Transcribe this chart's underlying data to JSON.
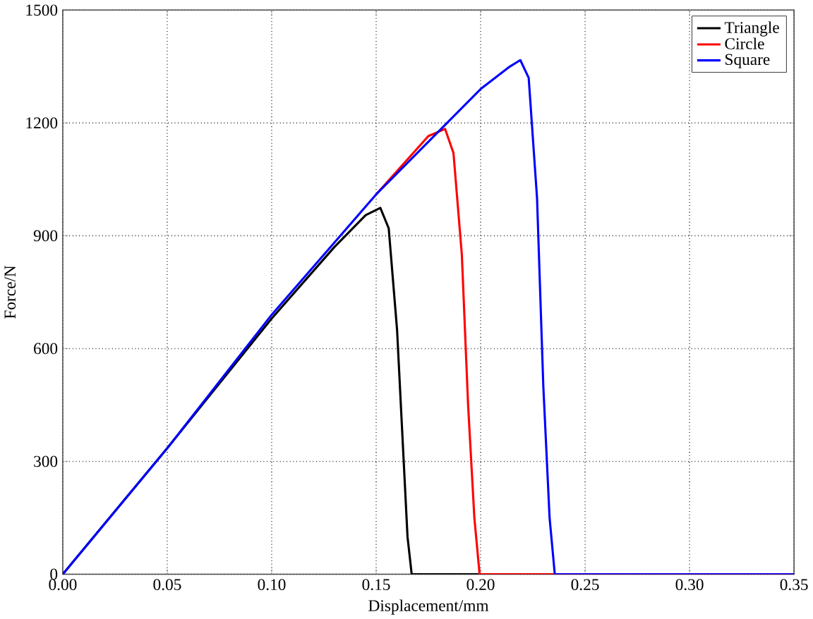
{
  "chart_data": {
    "type": "line",
    "xlabel": "Displacement/mm",
    "ylabel": "Force/N",
    "xlim": [
      0,
      0.35
    ],
    "ylim": [
      0,
      1500
    ],
    "xticks": [
      {
        "value": 0,
        "label": "0.00"
      },
      {
        "value": 0.05,
        "label": "0.05"
      },
      {
        "value": 0.1,
        "label": "0.10"
      },
      {
        "value": 0.15,
        "label": "0.15"
      },
      {
        "value": 0.2,
        "label": "0.20"
      },
      {
        "value": 0.25,
        "label": "0.25"
      },
      {
        "value": 0.3,
        "label": "0.30"
      },
      {
        "value": 0.35,
        "label": "0.35"
      }
    ],
    "yticks": [
      0,
      300,
      600,
      900,
      1200,
      1500
    ],
    "grid": true,
    "legend": "top right",
    "marker": "none",
    "line_style": "solid",
    "series": [
      {
        "name": "Triangle",
        "color": "#000000",
        "x": [
          0,
          0.05,
          0.1,
          0.13,
          0.145,
          0.152,
          0.156,
          0.16,
          0.163,
          0.165,
          0.167,
          0.2,
          0.35
        ],
        "values": [
          0,
          335,
          680,
          870,
          955,
          974,
          920,
          650,
          320,
          100,
          0,
          0,
          0
        ]
      },
      {
        "name": "Circle",
        "color": "#ff0000",
        "x": [
          0.15,
          0.175,
          0.183,
          0.187,
          0.191,
          0.194,
          0.197,
          0.1995,
          0.25,
          0.35
        ],
        "values": [
          1010,
          1165,
          1184,
          1120,
          850,
          450,
          150,
          0,
          0,
          0
        ]
      },
      {
        "name": "Square",
        "color": "#0000ff",
        "x": [
          0,
          0.05,
          0.1,
          0.15,
          0.2,
          0.214,
          0.219,
          0.223,
          0.227,
          0.23,
          0.233,
          0.2355,
          0.3,
          0.35
        ],
        "values": [
          0,
          335,
          690,
          1010,
          1290,
          1350,
          1367,
          1320,
          1000,
          500,
          150,
          0,
          0,
          0
        ]
      }
    ]
  }
}
